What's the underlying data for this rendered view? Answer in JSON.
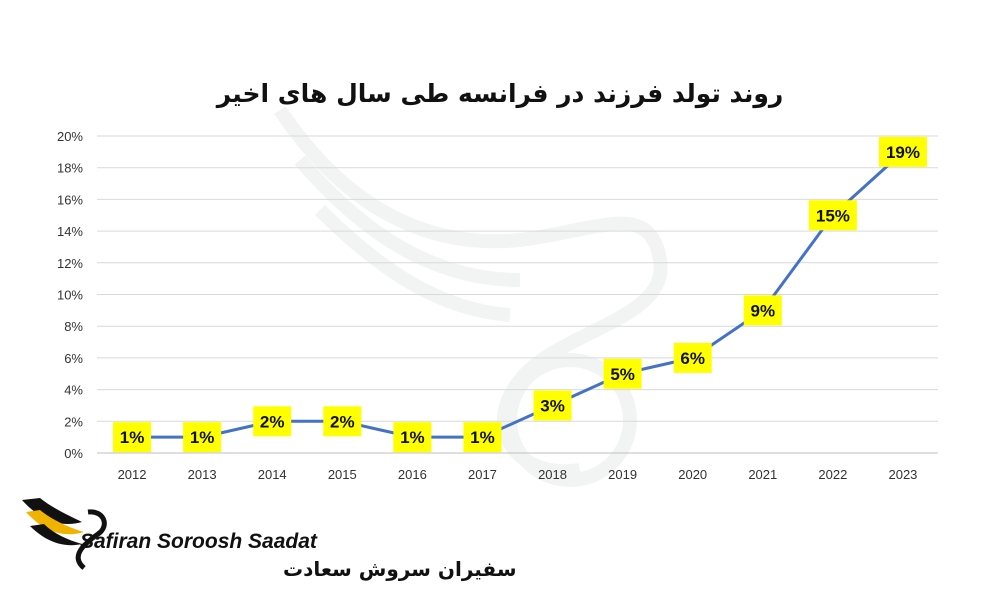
{
  "chart_data": {
    "type": "line",
    "title": "روند تولد فرزند در فرانسه طی سال های اخیر",
    "categories": [
      "2012",
      "2013",
      "2014",
      "2015",
      "2016",
      "2017",
      "2018",
      "2019",
      "2020",
      "2021",
      "2022",
      "2023"
    ],
    "values": [
      1,
      1,
      2,
      2,
      1,
      1,
      3,
      5,
      6,
      9,
      15,
      19
    ],
    "data_labels": [
      "1%",
      "1%",
      "2%",
      "2%",
      "1%",
      "1%",
      "3%",
      "5%",
      "6%",
      "9%",
      "15%",
      "19%"
    ],
    "y_ticks": [
      "0%",
      "2%",
      "4%",
      "6%",
      "8%",
      "10%",
      "12%",
      "14%",
      "16%",
      "18%",
      "20%"
    ],
    "ylim": [
      0,
      20
    ],
    "grid": true,
    "line_color": "#4472c4",
    "label_bg_color": "#ffff00"
  },
  "brand": {
    "name_en": "Safiran Soroosh Saadat",
    "name_fa": "سفیران سروش سعادت",
    "accent_color": "#f0b400",
    "logo_icon": "swan-wing-logo-icon"
  }
}
